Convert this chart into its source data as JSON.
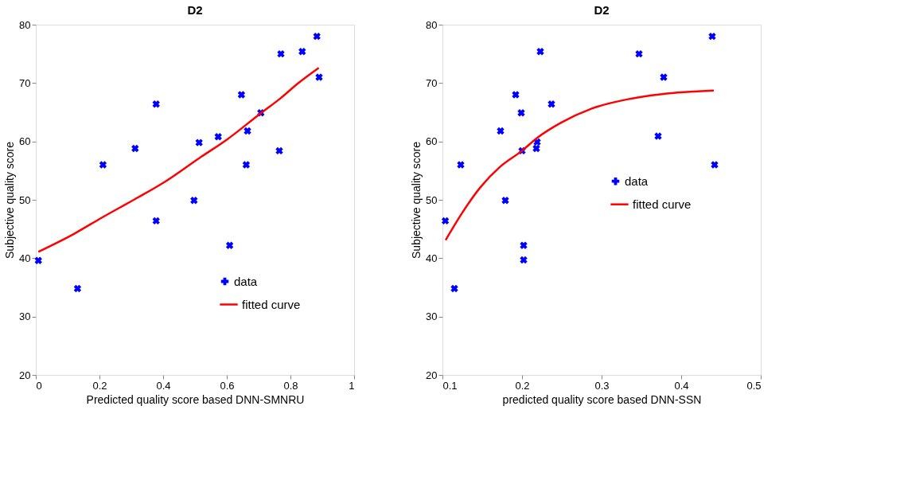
{
  "chart_data": [
    {
      "type": "scatter",
      "title": "D2",
      "xlabel": "Predicted quality score based DNN-SMNRU",
      "ylabel": "Subjective quality score",
      "xlim": [
        0,
        1
      ],
      "xticks": [
        0,
        0.2,
        0.4,
        0.6,
        0.8,
        1
      ],
      "ylim": [
        20,
        80
      ],
      "yticks": [
        20,
        30,
        40,
        50,
        60,
        70,
        80
      ],
      "grid": false,
      "legend": "bottom right",
      "series": [
        {
          "name": "data",
          "type": "scatter",
          "color": "#0000ff",
          "marker": "cross",
          "x": [
            0.008,
            0.131,
            0.211,
            0.312,
            0.378,
            0.378,
            0.497,
            0.513,
            0.573,
            0.609,
            0.646,
            0.661,
            0.665,
            0.707,
            0.765,
            0.77,
            0.837,
            0.883,
            0.89
          ],
          "values": [
            39.6,
            34.8,
            56.0,
            58.8,
            66.4,
            46.4,
            49.9,
            59.8,
            60.8,
            42.2,
            68.0,
            56.0,
            61.8,
            64.9,
            58.4,
            75.0,
            75.4,
            78.0,
            71.0
          ]
        },
        {
          "name": "fitted curve",
          "type": "line",
          "color": "#ff0000",
          "line_style": "solid",
          "x": [
            0.008,
            0.121,
            0.206,
            0.311,
            0.403,
            0.515,
            0.6,
            0.706,
            0.769,
            0.825,
            0.889
          ],
          "values": [
            41.1,
            44.2,
            46.9,
            50.1,
            53.0,
            57.2,
            60.3,
            64.8,
            67.4,
            70.0,
            72.6
          ]
        }
      ]
    },
    {
      "type": "scatter",
      "title": "D2",
      "xlabel": "predicted quality score based DNN-SSN",
      "ylabel": "Subjective quality score",
      "xlim": [
        0.1,
        0.5
      ],
      "xticks": [
        0.1,
        0.2,
        0.3,
        0.4,
        0.5
      ],
      "ylim": [
        20,
        80
      ],
      "yticks": [
        20,
        30,
        40,
        50,
        60,
        70,
        80
      ],
      "grid": false,
      "legend": "right",
      "series": [
        {
          "name": "data",
          "type": "scatter",
          "color": "#0000ff",
          "marker": "cross",
          "x": [
            0.1036,
            0.115,
            0.123,
            0.173,
            0.179,
            0.192,
            0.199,
            0.2,
            0.202,
            0.202,
            0.218,
            0.219,
            0.223,
            0.237,
            0.347,
            0.371,
            0.378,
            0.439,
            0.442
          ],
          "values": [
            46.4,
            34.8,
            56.0,
            61.8,
            49.9,
            68.0,
            64.9,
            58.4,
            42.2,
            39.7,
            58.8,
            59.9,
            75.4,
            66.4,
            75.0,
            60.9,
            71.0,
            78.0,
            56.0
          ]
        },
        {
          "name": "fitted curve",
          "type": "line",
          "color": "#ff0000",
          "line_style": "solid",
          "x": [
            0.104,
            0.124,
            0.148,
            0.172,
            0.2,
            0.219,
            0.249,
            0.287,
            0.332,
            0.376,
            0.441
          ],
          "values": [
            43.1,
            47.6,
            52.2,
            55.6,
            58.4,
            60.6,
            63.2,
            65.6,
            67.2,
            68.1,
            68.7
          ]
        }
      ]
    }
  ]
}
